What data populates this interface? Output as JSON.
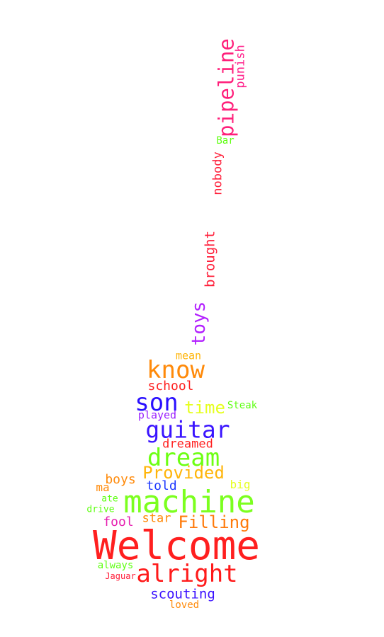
{
  "words": [
    {
      "text": "Welcome",
      "color": "#ff1f1f",
      "weight": "largest"
    },
    {
      "text": "machine",
      "color": "#7cff1f",
      "weight": "large"
    },
    {
      "text": "alright",
      "color": "#ff1a1a",
      "weight": "large"
    },
    {
      "text": "guitar",
      "color": "#3a14ff",
      "weight": "medium-large"
    },
    {
      "text": "dream",
      "color": "#6dff12",
      "weight": "medium-large"
    },
    {
      "text": "know",
      "color": "#ff8a0a",
      "weight": "medium-large"
    },
    {
      "text": "son",
      "color": "#2a10ff",
      "weight": "medium-large"
    },
    {
      "text": "pipeline",
      "color": "#ff1f7a",
      "weight": "medium"
    },
    {
      "text": "toys",
      "color": "#b21fff",
      "weight": "medium"
    },
    {
      "text": "Provided",
      "color": "#ffb50a",
      "weight": "medium"
    },
    {
      "text": "Filling",
      "color": "#ff7a0a",
      "weight": "medium"
    },
    {
      "text": "time",
      "color": "#e6ff1f",
      "weight": "medium"
    },
    {
      "text": "scouting",
      "color": "#3a10ff",
      "weight": "small"
    },
    {
      "text": "brought",
      "color": "#ff1f3a",
      "weight": "small"
    },
    {
      "text": "nobody",
      "color": "#ff1f3a",
      "weight": "small"
    },
    {
      "text": "punish",
      "color": "#ff1f8a",
      "weight": "small"
    },
    {
      "text": "school",
      "color": "#ff1f1f",
      "weight": "small"
    },
    {
      "text": "dreamed",
      "color": "#ff1f1f",
      "weight": "small"
    },
    {
      "text": "told",
      "color": "#1f3aff",
      "weight": "small"
    },
    {
      "text": "boys",
      "color": "#ff8a0a",
      "weight": "small"
    },
    {
      "text": "fool",
      "color": "#e61fb0",
      "weight": "small"
    },
    {
      "text": "star",
      "color": "#ff8a0a",
      "weight": "small"
    },
    {
      "text": "ma",
      "color": "#ff8a0a",
      "weight": "small"
    },
    {
      "text": "played",
      "color": "#9a1fff",
      "weight": "tiny"
    },
    {
      "text": "mean",
      "color": "#ffb50a",
      "weight": "tiny"
    },
    {
      "text": "Steak",
      "color": "#5fff12",
      "weight": "tiny"
    },
    {
      "text": "big",
      "color": "#e6ff1f",
      "weight": "tiny"
    },
    {
      "text": "Bar",
      "color": "#5fff12",
      "weight": "tiny"
    },
    {
      "text": "ate",
      "color": "#5fff12",
      "weight": "tiny"
    },
    {
      "text": "drive",
      "color": "#5fff12",
      "weight": "tiny"
    },
    {
      "text": "always",
      "color": "#5fff12",
      "weight": "tiny"
    },
    {
      "text": "Jaguar",
      "color": "#ff1f3a",
      "weight": "tiny"
    },
    {
      "text": "loved",
      "color": "#ff8a0a",
      "weight": "tiny"
    }
  ]
}
